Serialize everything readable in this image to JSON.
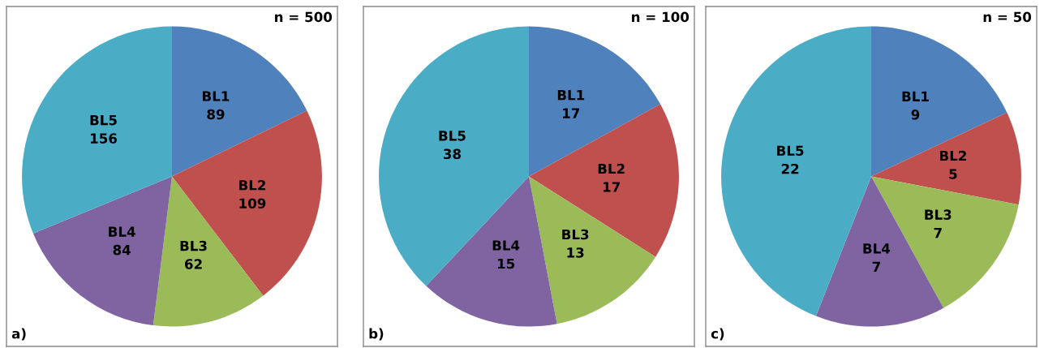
{
  "chart_data": [
    {
      "type": "pie",
      "categories": [
        "BL1",
        "BL2",
        "BL3",
        "BL4",
        "BL5"
      ],
      "values": [
        89,
        109,
        62,
        84,
        156
      ],
      "colors": [
        "#4f81bd",
        "#c0504d",
        "#9bbb59",
        "#8064a2",
        "#4bacc6"
      ],
      "data_labels": true,
      "annotations": [
        "n = 500",
        "a)"
      ]
    },
    {
      "type": "pie",
      "categories": [
        "BL1",
        "BL2",
        "BL3",
        "BL4",
        "BL5"
      ],
      "values": [
        17,
        17,
        13,
        15,
        38
      ],
      "colors": [
        "#4f81bd",
        "#c0504d",
        "#9bbb59",
        "#8064a2",
        "#4bacc6"
      ],
      "data_labels": true,
      "annotations": [
        "n = 100",
        "b)"
      ]
    },
    {
      "type": "pie",
      "categories": [
        "BL1",
        "BL2",
        "BL3",
        "BL4",
        "BL5"
      ],
      "values": [
        9,
        5,
        7,
        7,
        22
      ],
      "colors": [
        "#4f81bd",
        "#c0504d",
        "#9bbb59",
        "#8064a2",
        "#4bacc6"
      ],
      "data_labels": true,
      "annotations": [
        "n = 50",
        "c)"
      ]
    }
  ]
}
